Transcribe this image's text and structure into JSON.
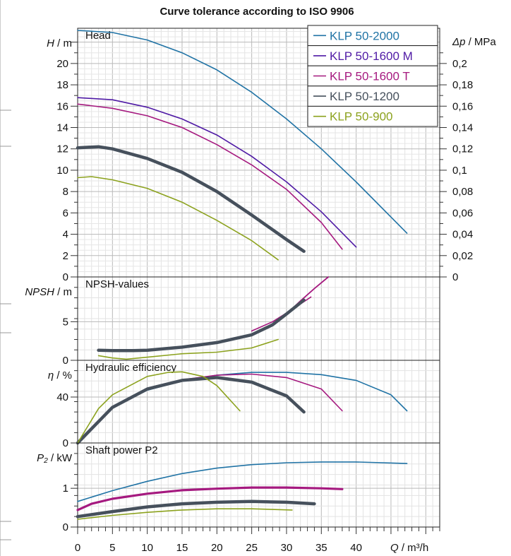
{
  "chart_data": {
    "type": "line",
    "title": "Curve tolerance according to ISO 9906",
    "x_axis": {
      "label": "Q / m³/h",
      "range": [
        0,
        52
      ],
      "ticks": [
        0,
        5,
        10,
        15,
        20,
        25,
        30,
        35,
        40
      ]
    },
    "legend": {
      "placement": "top-right",
      "entries": [
        {
          "name": "KLP 50-2000",
          "color": "#2073a5"
        },
        {
          "name": "KLP 50-1600 M",
          "color": "#4f1aa5"
        },
        {
          "name": "KLP 50-1600 T",
          "color": "#a5197f"
        },
        {
          "name": "KLP 50-1200",
          "color": "#46505c"
        },
        {
          "name": "KLP 50-900",
          "color": "#8ca21e"
        }
      ]
    },
    "panels": [
      {
        "id": "head",
        "title": "Head",
        "y_label_var": "H",
        "y_label_unit": "/ m",
        "y_range": [
          0,
          23.3
        ],
        "y_ticks": [
          0,
          2,
          4,
          6,
          8,
          10,
          12,
          14,
          16,
          18,
          20
        ],
        "y2_label_var": "Δp",
        "y2_label_unit": "/ MPa",
        "y2_ticks": [
          "0",
          "0,02",
          "0,04",
          "0,06",
          "0,08",
          "0,1",
          "0,12",
          "0,14",
          "0,16",
          "0,18",
          "0,2"
        ],
        "series": [
          {
            "name": "KLP 50-2000",
            "color": "#2073a5",
            "width": 1.6,
            "x": [
              0,
              5,
              10,
              15,
              20,
              25,
              30,
              35,
              40,
              47.3
            ],
            "y": [
              23.1,
              22.9,
              22.2,
              21.0,
              19.4,
              17.3,
              14.8,
              12.0,
              8.9,
              4.1
            ]
          },
          {
            "name": "KLP 50-1600 M",
            "color": "#4f1aa5",
            "width": 1.6,
            "x": [
              0,
              5,
              10,
              15,
              20,
              25,
              30,
              35,
              40
            ],
            "y": [
              16.8,
              16.6,
              15.9,
              14.8,
              13.3,
              11.3,
              8.9,
              6.1,
              2.8
            ]
          },
          {
            "name": "KLP 50-1600 T",
            "color": "#a5197f",
            "width": 1.6,
            "x": [
              0,
              5,
              10,
              15,
              20,
              25,
              30,
              35,
              38
            ],
            "y": [
              16.2,
              15.8,
              15.1,
              14.0,
              12.4,
              10.5,
              8.2,
              5.1,
              2.6
            ]
          },
          {
            "name": "KLP 50-1200",
            "color": "#46505c",
            "width": 4.5,
            "x": [
              0,
              3,
              5,
              10,
              15,
              20,
              25,
              30,
              32.5
            ],
            "y": [
              12.1,
              12.2,
              12.0,
              11.1,
              9.8,
              8.0,
              5.8,
              3.5,
              2.4
            ]
          },
          {
            "name": "KLP 50-900",
            "color": "#8ca21e",
            "width": 1.6,
            "x": [
              0,
              2,
              5,
              10,
              15,
              20,
              25,
              28.8
            ],
            "y": [
              9.3,
              9.4,
              9.1,
              8.3,
              7.0,
              5.3,
              3.4,
              1.6
            ]
          }
        ]
      },
      {
        "id": "npsh",
        "title": "NPSH-values",
        "y_label_var": "NPSH",
        "y_label_unit": "/ m",
        "y_range": [
          0,
          10.8
        ],
        "y_ticks": [
          0,
          5
        ],
        "series": [
          {
            "name": "KLP 50-2000",
            "color": "#a5197f",
            "width": 1.8,
            "x": [
              30,
              32,
              34,
              36
            ],
            "y": [
              6.0,
              7.7,
              9.3,
              10.8
            ]
          },
          {
            "name": "KLP 50-1600 T",
            "color": "#a5197f",
            "width": 1.6,
            "x": [
              25,
              28,
              31,
              33.5
            ],
            "y": [
              3.8,
              5.0,
              6.7,
              8.2
            ]
          },
          {
            "name": "KLP 50-1200",
            "color": "#46505c",
            "width": 4.5,
            "x": [
              3,
              5,
              8,
              10,
              15,
              20,
              25,
              28,
              30,
              32.5
            ],
            "y": [
              1.3,
              1.25,
              1.25,
              1.3,
              1.7,
              2.3,
              3.3,
              4.6,
              6.0,
              7.8
            ]
          },
          {
            "name": "KLP 50-900",
            "color": "#8ca21e",
            "width": 1.6,
            "x": [
              3,
              5,
              7,
              10,
              15,
              20,
              25,
              28.8
            ],
            "y": [
              0.6,
              0.3,
              0.15,
              0.4,
              0.85,
              1.05,
              1.6,
              2.7
            ]
          }
        ]
      },
      {
        "id": "efficiency",
        "title": "Hydraulic efficiency",
        "y_label_var": "η",
        "y_label_unit": "/ %",
        "y_range": [
          0,
          72
        ],
        "y_ticks": [
          0,
          40
        ],
        "series": [
          {
            "name": "KLP 50-2000",
            "color": "#2073a5",
            "width": 1.6,
            "x": [
              0,
              5,
              10,
              15,
              20,
              25,
              30,
              35,
              40,
              45,
              47.3
            ],
            "y": [
              0,
              31,
              46,
              54,
              59,
              61.5,
              61.5,
              59.5,
              54.5,
              42,
              28
            ]
          },
          {
            "name": "KLP 50-1600 T",
            "color": "#a5197f",
            "width": 1.6,
            "x": [
              0,
              5,
              10,
              15,
              20,
              25,
              30,
              35,
              38
            ],
            "y": [
              0,
              31,
              47,
              55,
              59,
              60,
              57,
              47,
              28
            ]
          },
          {
            "name": "KLP 50-1200",
            "color": "#46505c",
            "width": 4.5,
            "x": [
              0,
              5,
              10,
              15,
              20,
              25,
              30,
              32.5
            ],
            "y": [
              0,
              31,
              47,
              54.5,
              57,
              53,
              41,
              27
            ]
          },
          {
            "name": "KLP 50-900",
            "color": "#8ca21e",
            "width": 1.6,
            "x": [
              0,
              3,
              5,
              10,
              13,
              15,
              18,
              20,
              23.3
            ],
            "y": [
              0,
              30,
              42,
              58,
              61.5,
              62,
              58,
              50,
              28
            ]
          }
        ]
      },
      {
        "id": "power",
        "title": "Shaft power P2",
        "y_label_var": "P₂",
        "y_label_unit": "/ kW",
        "y_range": [
          0,
          2.17
        ],
        "y_ticks": [
          0,
          1
        ],
        "series": [
          {
            "name": "KLP 50-2000",
            "color": "#2073a5",
            "width": 1.6,
            "x": [
              0,
              5,
              10,
              15,
              20,
              25,
              30,
              35,
              40,
              47.3
            ],
            "y": [
              0.66,
              0.94,
              1.18,
              1.38,
              1.52,
              1.61,
              1.66,
              1.68,
              1.68,
              1.64
            ]
          },
          {
            "name": "KLP 50-1600 T",
            "color": "#a5197f",
            "width": 3.2,
            "x": [
              0,
              2,
              5,
              10,
              15,
              20,
              25,
              30,
              35,
              38
            ],
            "y": [
              0.44,
              0.6,
              0.73,
              0.86,
              0.95,
              0.99,
              1.02,
              1.02,
              1.0,
              0.98
            ]
          },
          {
            "name": "KLP 50-1200",
            "color": "#46505c",
            "width": 4.5,
            "x": [
              0,
              5,
              10,
              15,
              20,
              25,
              30,
              34
            ],
            "y": [
              0.27,
              0.4,
              0.52,
              0.6,
              0.64,
              0.66,
              0.64,
              0.6
            ]
          },
          {
            "name": "KLP 50-900",
            "color": "#8ca21e",
            "width": 1.6,
            "x": [
              0,
              5,
              10,
              15,
              20,
              25,
              30.8
            ],
            "y": [
              0.2,
              0.3,
              0.38,
              0.44,
              0.47,
              0.47,
              0.44
            ]
          }
        ]
      }
    ]
  }
}
